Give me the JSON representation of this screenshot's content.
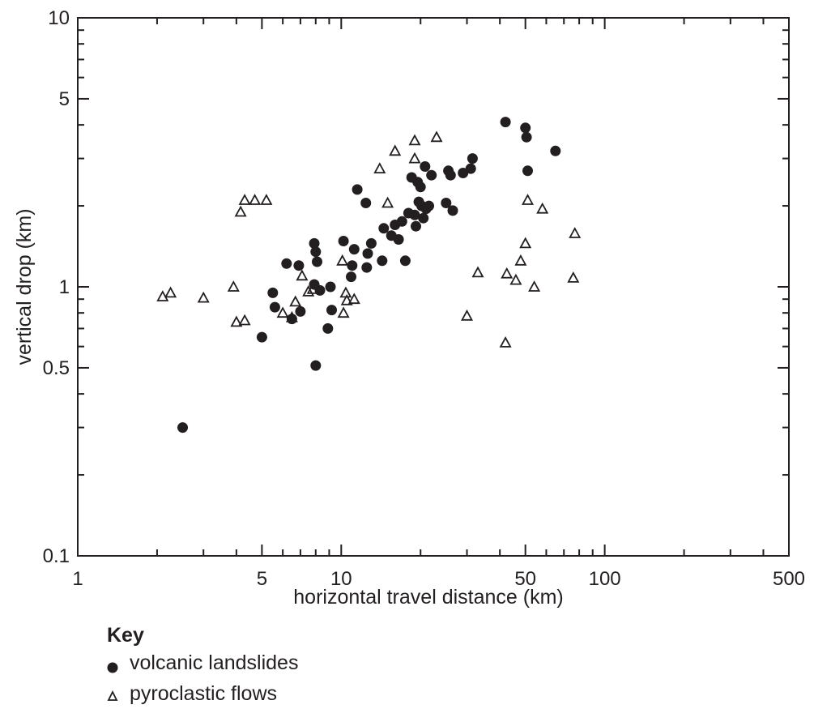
{
  "chart_data": {
    "type": "scatter",
    "x_scale": "log",
    "y_scale": "log",
    "xlim": [
      1,
      500
    ],
    "ylim": [
      0.1,
      10
    ],
    "xlabel": "horizontal travel distance (km)",
    "ylabel": "vertical drop (km)",
    "x_tick_labels": [
      "1",
      "5",
      "10",
      "50",
      "100",
      "500"
    ],
    "x_tick_values": [
      1,
      5,
      10,
      50,
      100,
      500
    ],
    "y_tick_labels": [
      "0.1",
      "0.5",
      "1",
      "5",
      "10"
    ],
    "y_tick_values": [
      0.1,
      0.5,
      1,
      5,
      10
    ],
    "grid": false,
    "legend": {
      "title": "Key",
      "placement": "bottom-left"
    },
    "series": [
      {
        "name": "volcanic landslides",
        "marker": "filled-circle",
        "color": "#231f20",
        "points": [
          [
            2.5,
            0.3
          ],
          [
            5,
            0.65
          ],
          [
            5.5,
            0.95
          ],
          [
            5.6,
            0.84
          ],
          [
            6.2,
            1.22
          ],
          [
            6.5,
            0.76
          ],
          [
            6.9,
            1.2
          ],
          [
            7,
            0.81
          ],
          [
            7.9,
            1.45
          ],
          [
            7.9,
            1.02
          ],
          [
            8,
            1.35
          ],
          [
            8.1,
            1.24
          ],
          [
            8.3,
            0.97
          ],
          [
            8.9,
            0.7
          ],
          [
            9.1,
            1.0
          ],
          [
            9.2,
            0.82
          ],
          [
            10.2,
            1.48
          ],
          [
            10.9,
            1.09
          ],
          [
            11,
            1.2
          ],
          [
            11.2,
            1.38
          ],
          [
            11.5,
            2.3
          ],
          [
            12.4,
            2.05
          ],
          [
            12.5,
            1.18
          ],
          [
            12.6,
            1.33
          ],
          [
            13,
            1.45
          ],
          [
            14.3,
            1.25
          ],
          [
            14.5,
            1.65
          ],
          [
            15.5,
            1.55
          ],
          [
            16,
            1.7
          ],
          [
            16.5,
            1.5
          ],
          [
            17,
            1.75
          ],
          [
            17.5,
            1.25
          ],
          [
            18,
            1.88
          ],
          [
            18.5,
            2.55
          ],
          [
            19,
            1.85
          ],
          [
            19.2,
            1.68
          ],
          [
            19.5,
            2.45
          ],
          [
            19.7,
            2.07
          ],
          [
            20,
            2.35
          ],
          [
            20.2,
            2.0
          ],
          [
            20.5,
            1.8
          ],
          [
            20.8,
            2.8
          ],
          [
            21,
            1.95
          ],
          [
            21.5,
            2.0
          ],
          [
            22,
            2.6
          ],
          [
            25,
            2.05
          ],
          [
            25.5,
            2.7
          ],
          [
            26,
            2.6
          ],
          [
            26.5,
            1.92
          ],
          [
            29,
            2.65
          ],
          [
            31,
            2.75
          ],
          [
            31.5,
            3.0
          ],
          [
            42,
            4.1
          ],
          [
            50,
            3.9
          ],
          [
            50.5,
            3.6
          ],
          [
            51,
            2.7
          ],
          [
            65,
            3.2
          ],
          [
            8,
            0.51
          ]
        ]
      },
      {
        "name": "pyroclastic flows",
        "marker": "open-triangle",
        "color": "#231f20",
        "points": [
          [
            2.1,
            0.92
          ],
          [
            2.25,
            0.95
          ],
          [
            3,
            0.91
          ],
          [
            3.9,
            1.0
          ],
          [
            4,
            0.74
          ],
          [
            4.15,
            1.9
          ],
          [
            4.3,
            2.1
          ],
          [
            4.3,
            0.75
          ],
          [
            4.7,
            2.1
          ],
          [
            5.2,
            2.1
          ],
          [
            6,
            0.8
          ],
          [
            6.5,
            0.77
          ],
          [
            6.7,
            0.88
          ],
          [
            7.1,
            1.1
          ],
          [
            7.5,
            0.96
          ],
          [
            7.8,
            0.98
          ],
          [
            10.1,
            1.25
          ],
          [
            10.2,
            0.8
          ],
          [
            10.4,
            0.95
          ],
          [
            10.5,
            0.89
          ],
          [
            11.2,
            0.9
          ],
          [
            14,
            2.75
          ],
          [
            15,
            2.05
          ],
          [
            16,
            3.2
          ],
          [
            19,
            3.5
          ],
          [
            19,
            3.0
          ],
          [
            23,
            3.6
          ],
          [
            30,
            0.78
          ],
          [
            33,
            1.13
          ],
          [
            42,
            0.62
          ],
          [
            42.5,
            1.12
          ],
          [
            46,
            1.06
          ],
          [
            48,
            1.25
          ],
          [
            50,
            1.45
          ],
          [
            51,
            2.1
          ],
          [
            54,
            1.0
          ],
          [
            58,
            1.95
          ],
          [
            76,
            1.08
          ],
          [
            77,
            1.58
          ]
        ]
      }
    ]
  }
}
